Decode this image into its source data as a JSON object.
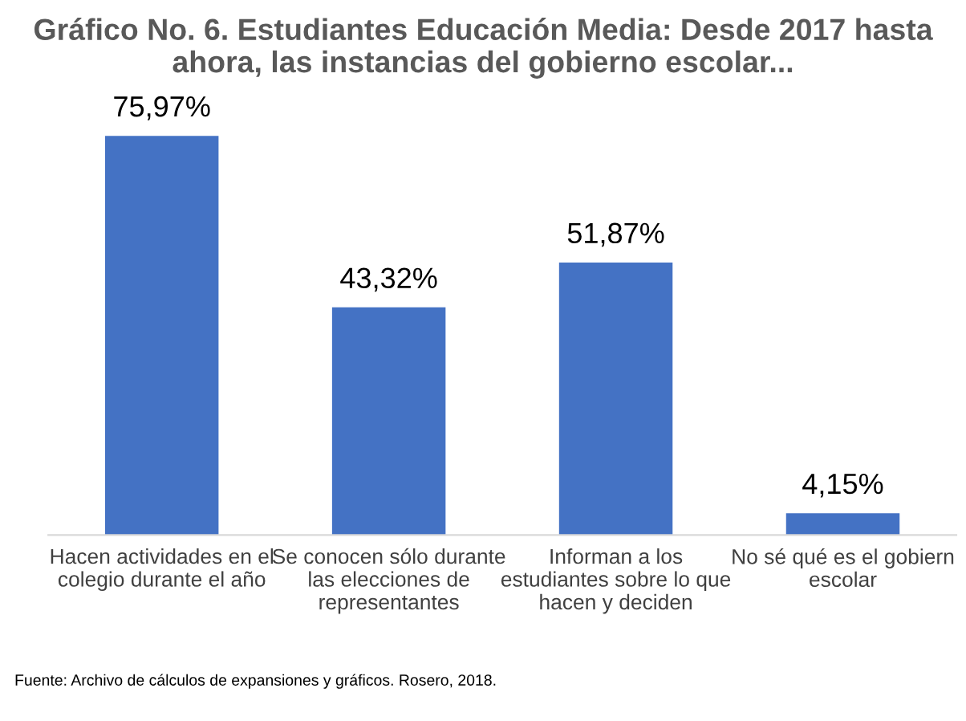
{
  "chart_data": {
    "type": "bar",
    "title": "Gráfico No. 6. Estudiantes Educación Media: Desde 2017 hasta\nahora, las instancias del gobierno escolar...",
    "categories": [
      "Hacen actividades en el\ncolegio durante el año",
      "Se conocen sólo durante\nlas elecciones de\nrepresentantes",
      "Informan a los\nestudiantes sobre lo que\nhacen y deciden",
      "No sé qué es el gobiern\nescolar"
    ],
    "values": [
      75.97,
      43.32,
      51.87,
      4.15
    ],
    "value_labels": [
      "75,97%",
      "43,32%",
      "51,87%",
      "4,15%"
    ],
    "color": "#4472c4",
    "annotations": [
      "Fuente: Archivo de cálculos de expansiones y gráficos. Rosero, 2018."
    ]
  }
}
